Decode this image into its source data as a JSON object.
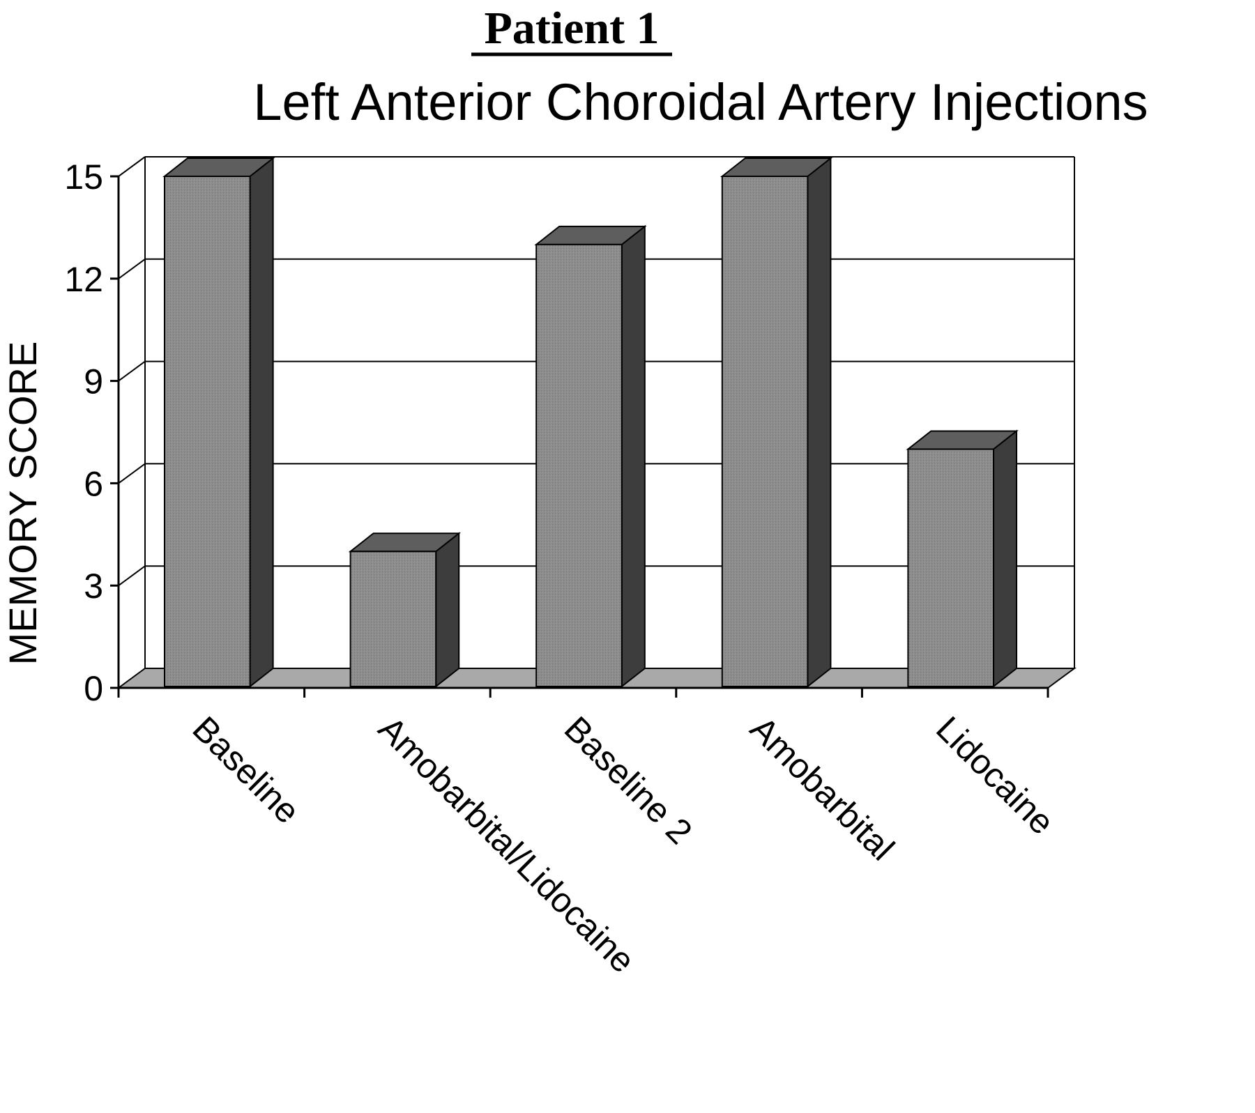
{
  "chart_data": {
    "type": "bar",
    "header": "Patient 1",
    "title": "Left Anterior Choroidal Artery Injections",
    "xlabel": "",
    "ylabel": "MEMORY SCORE",
    "categories": [
      "Baseline",
      "Amobarbital/Lidocaine",
      "Baseline 2",
      "Amobarbital",
      "Lidocaine"
    ],
    "values": [
      15,
      4,
      13,
      15,
      7
    ],
    "ylim": [
      0,
      15
    ],
    "yticks": [
      0,
      3,
      6,
      9,
      12,
      15
    ],
    "grid": true,
    "legend": "none",
    "style": "3d",
    "colors": {
      "bar_front": "#8c8c8c",
      "bar_side": "#3d3d3d",
      "bar_top": "#5e5e5e",
      "floor": "#a9a9a9",
      "grid": "#000000"
    }
  }
}
